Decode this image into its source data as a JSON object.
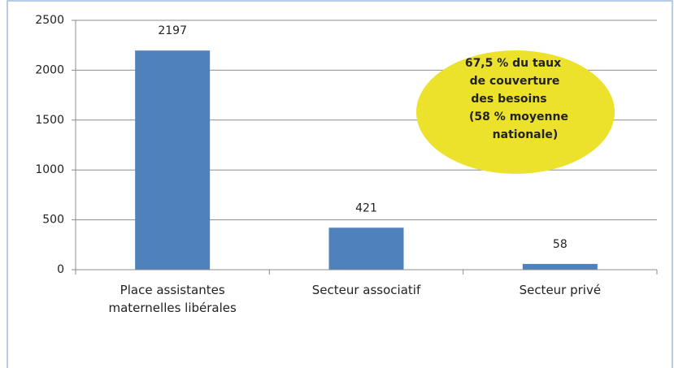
{
  "chart_data": {
    "type": "bar",
    "categories": [
      "Place assistantes maternelles libérales",
      "Secteur associatif",
      "Secteur privé"
    ],
    "values": [
      2197,
      421,
      58
    ],
    "color": "#4f81bd",
    "ylim": [
      0,
      2500
    ],
    "yticks": [
      0,
      500,
      1000,
      1500,
      2000,
      2500
    ],
    "grid": true,
    "annotation": [
      "67,5 % du taux",
      "de  couverture",
      "des besoins",
      "(58 % moyenne",
      "nationale)"
    ],
    "annotation_color": "#ece22c"
  }
}
